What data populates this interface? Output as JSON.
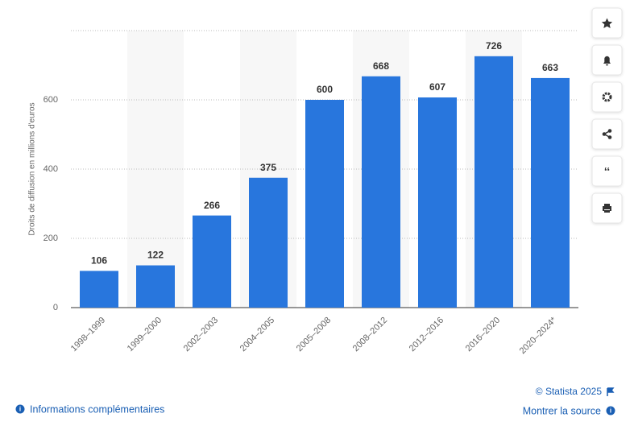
{
  "chart_data": {
    "type": "bar",
    "y_label": "Droits de diffusion en millions d'euros",
    "categories": [
      "1998–1999",
      "1999–2000",
      "2002–2003",
      "2004–2005",
      "2005–2008",
      "2008–2012",
      "2012–2016",
      "2016–2020",
      "2020–2024*"
    ],
    "values": [
      106,
      122,
      266,
      375,
      600,
      668,
      607,
      726,
      663
    ],
    "color": "#2876dd",
    "ylim": [
      0,
      800
    ],
    "yticks": [
      0,
      200,
      400,
      600
    ],
    "grid": true
  },
  "footer": {
    "copyright": "© Statista 2025",
    "more_info": "Informations complémentaires",
    "source": "Montrer la source"
  }
}
